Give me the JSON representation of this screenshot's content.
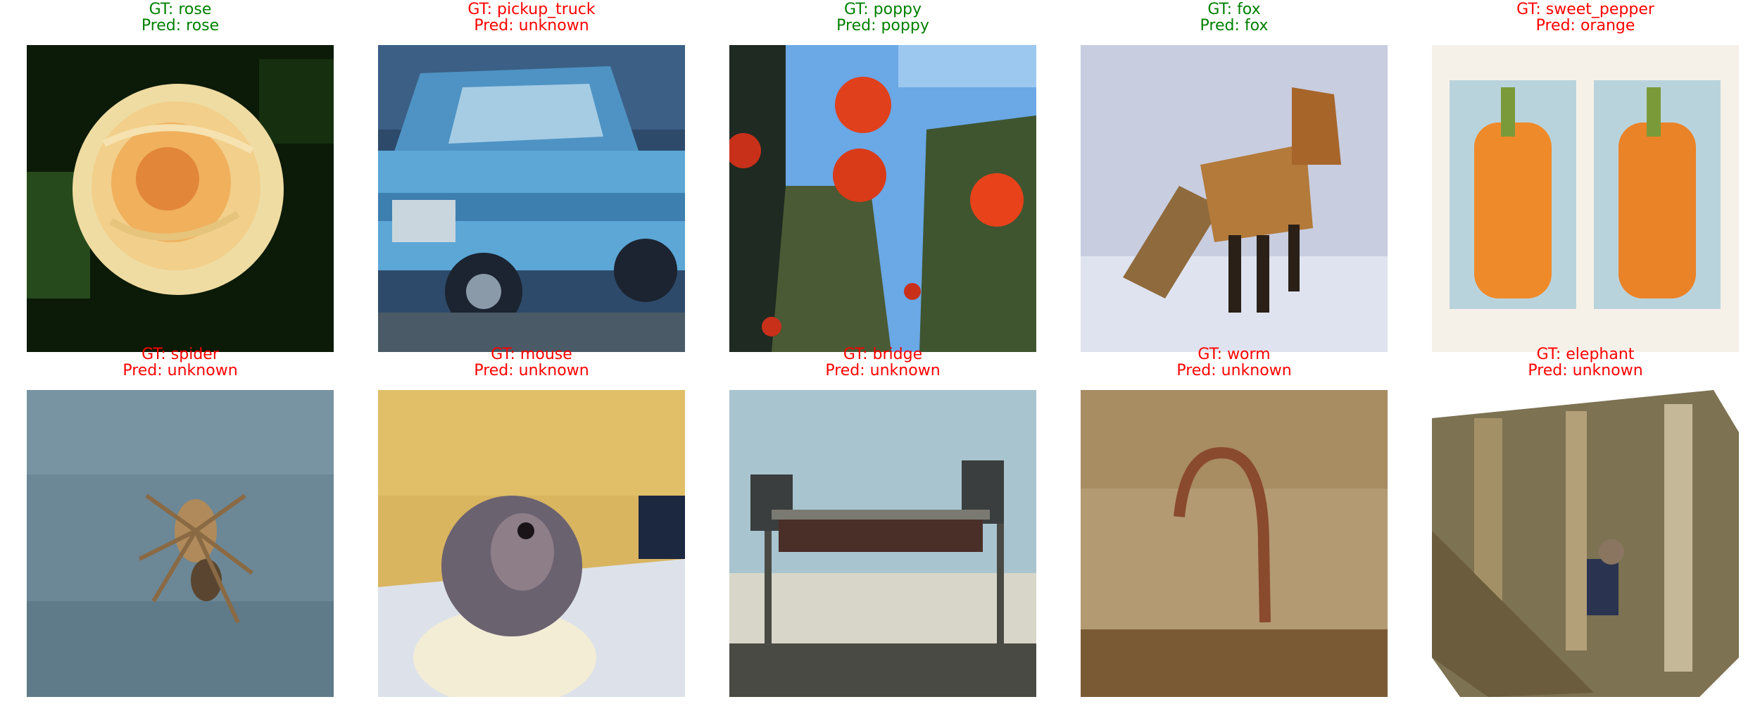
{
  "colors": {
    "correct": "#008000",
    "incorrect": "#ff0000"
  },
  "panels": [
    {
      "gt": "GT: rose",
      "pred": "Pred: rose",
      "gt_color": "#008000",
      "pred_color": "#008000",
      "scene": "rose flower"
    },
    {
      "gt": "GT: pickup_truck",
      "pred": "Pred: unknown",
      "gt_color": "#ff0000",
      "pred_color": "#ff0000",
      "scene": "blue pickup truck"
    },
    {
      "gt": "GT: poppy",
      "pred": "Pred: poppy",
      "gt_color": "#008000",
      "pred_color": "#008000",
      "scene": "red poppies against sky"
    },
    {
      "gt": "GT: fox",
      "pred": "Pred: fox",
      "gt_color": "#008000",
      "pred_color": "#008000",
      "scene": "fox in snow"
    },
    {
      "gt": "GT: sweet_pepper",
      "pred": "Pred: orange",
      "gt_color": "#ff0000",
      "pred_color": "#ff0000",
      "scene": "two orange peppers"
    },
    {
      "gt": "GT: spider",
      "pred": "Pred: unknown",
      "gt_color": "#ff0000",
      "pred_color": "#ff0000",
      "scene": "spider on web"
    },
    {
      "gt": "GT: mouse",
      "pred": "Pred: unknown",
      "gt_color": "#ff0000",
      "pred_color": "#ff0000",
      "scene": "mouse on white surface"
    },
    {
      "gt": "GT: bridge",
      "pred": "Pred: unknown",
      "gt_color": "#ff0000",
      "pred_color": "#ff0000",
      "scene": "bridge over water"
    },
    {
      "gt": "GT: worm",
      "pred": "Pred: unknown",
      "gt_color": "#ff0000",
      "pred_color": "#ff0000",
      "scene": "worm on soil"
    },
    {
      "gt": "GT: elephant",
      "pred": "Pred: unknown",
      "gt_color": "#ff0000",
      "pred_color": "#ff0000",
      "scene": "elephant in forest"
    }
  ]
}
